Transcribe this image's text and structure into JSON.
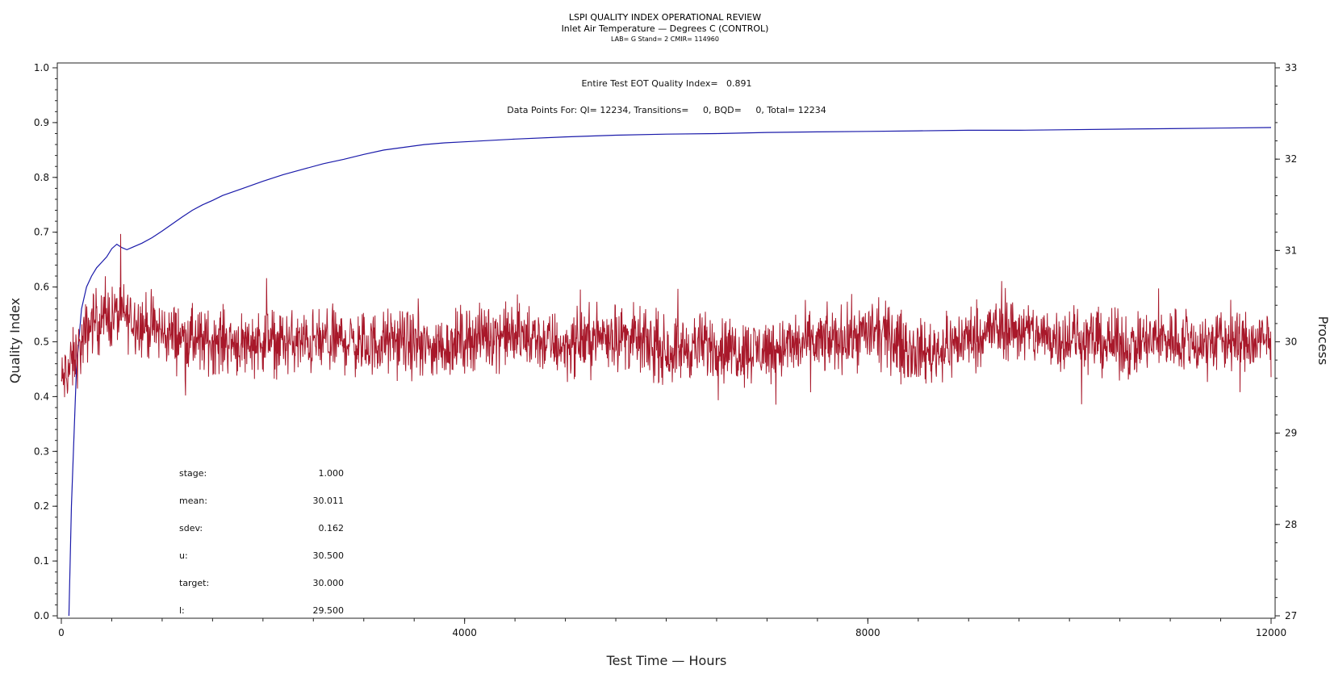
{
  "chart_data": {
    "type": "line",
    "title": "LSPI QUALITY INDEX OPERATIONAL REVIEW",
    "subtitle": "Inlet Air Temperature — Degrees C (CONTROL)",
    "subtitle2": "LAB= G Stand= 2 CMIR= 114960",
    "xlabel": "Test Time — Hours",
    "ylabel": "Quality Index",
    "y2label": "Process",
    "xlim": [
      0,
      12000
    ],
    "ylim": [
      0.0,
      1.0
    ],
    "y2lim": [
      27,
      33
    ],
    "x_ticks": [
      "0",
      "4000",
      "8000",
      "12000"
    ],
    "y_ticks": [
      "0.0",
      "0.1",
      "0.2",
      "0.3",
      "0.4",
      "0.5",
      "0.6",
      "0.7",
      "0.8",
      "0.9",
      "1.0"
    ],
    "y2_ticks": [
      "27",
      "28",
      "29",
      "30",
      "31",
      "32",
      "33"
    ],
    "grid": false,
    "annotations": [
      "Entire Test EOT Quality Index=   0.891",
      "Data Points For: QI= 12234, Transitions=     0, BQD=     0, Total= 12234"
    ],
    "stats": [
      {
        "label": "stage:",
        "value": "1.000"
      },
      {
        "label": "mean:",
        "value": "30.011"
      },
      {
        "label": "sdev:",
        "value": "0.162"
      },
      {
        "label": "u:",
        "value": "30.500"
      },
      {
        "label": "target:",
        "value": "30.000"
      },
      {
        "label": "l:",
        "value": "29.500"
      }
    ],
    "series": [
      {
        "axis": "left",
        "color": "#1a1aaa",
        "x": [
          75,
          100,
          150,
          200,
          250,
          300,
          350,
          400,
          450,
          500,
          550,
          600,
          650,
          700,
          800,
          900,
          1000,
          1100,
          1200,
          1300,
          1400,
          1500,
          1600,
          1800,
          2000,
          2200,
          2400,
          2600,
          2800,
          3000,
          3200,
          3400,
          3600,
          3800,
          4000,
          4500,
          5000,
          5500,
          6000,
          6500,
          7000,
          7500,
          8000,
          8500,
          9000,
          9500,
          10000,
          10500,
          11000,
          11500,
          12000
        ],
        "values": [
          0.0,
          0.2,
          0.45,
          0.56,
          0.6,
          0.62,
          0.635,
          0.645,
          0.655,
          0.67,
          0.678,
          0.672,
          0.668,
          0.672,
          0.68,
          0.69,
          0.702,
          0.715,
          0.728,
          0.74,
          0.75,
          0.758,
          0.767,
          0.78,
          0.793,
          0.805,
          0.815,
          0.825,
          0.833,
          0.842,
          0.85,
          0.855,
          0.86,
          0.863,
          0.865,
          0.87,
          0.874,
          0.877,
          0.879,
          0.88,
          0.882,
          0.883,
          0.884,
          0.885,
          0.886,
          0.886,
          0.887,
          0.888,
          0.889,
          0.89,
          0.891
        ]
      },
      {
        "axis": "right",
        "color": "#a8182a",
        "x": [
          0,
          50,
          100,
          150,
          200,
          250,
          300,
          400,
          500,
          600,
          700,
          800,
          900,
          1000,
          1200,
          1400,
          1600,
          1800,
          2000,
          2200,
          2400,
          2600,
          2800,
          3000,
          3200,
          3400,
          3600,
          3800,
          4000,
          4200,
          4400,
          4600,
          4800,
          5000,
          5200,
          5400,
          5600,
          5800,
          6000,
          6200,
          6400,
          6600,
          6800,
          7000,
          7200,
          7400,
          7600,
          7800,
          8000,
          8200,
          8400,
          8600,
          8800,
          9000,
          9200,
          9400,
          9600,
          9800,
          10000,
          10200,
          10400,
          10600,
          10800,
          11000,
          11200,
          11400,
          11600,
          11800,
          12000
        ],
        "values": [
          29.55,
          29.65,
          29.75,
          29.85,
          29.95,
          30.1,
          30.22,
          30.25,
          30.28,
          30.3,
          30.25,
          30.2,
          30.15,
          30.1,
          30.05,
          30.0,
          30.02,
          29.98,
          30.02,
          30.0,
          29.98,
          30.0,
          30.02,
          29.95,
          30.0,
          30.0,
          29.93,
          29.95,
          30.03,
          30.07,
          30.08,
          30.05,
          30.0,
          29.95,
          30.02,
          30.08,
          30.05,
          29.98,
          29.9,
          29.93,
          29.97,
          29.93,
          29.9,
          29.92,
          29.95,
          29.98,
          30.0,
          30.05,
          30.1,
          30.05,
          29.92,
          29.88,
          29.95,
          30.05,
          30.12,
          30.15,
          30.1,
          30.05,
          30.05,
          30.02,
          29.98,
          29.95,
          30.0,
          30.05,
          29.98,
          30.0,
          30.02,
          29.98,
          30.0
        ]
      }
    ]
  }
}
